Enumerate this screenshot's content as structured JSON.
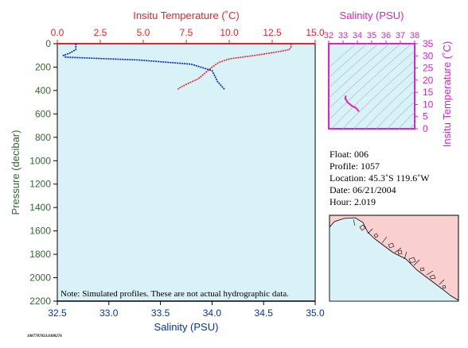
{
  "colors": {
    "plot_bg": "#d8f2f8",
    "temperature": "#e8232a",
    "salinity": "#0022bb",
    "ts": "#e020c8",
    "axis_text": "#336633",
    "map_land": "#f9cfcf",
    "map_water": "#d8f2f8"
  },
  "chart_data": [
    {
      "type": "line",
      "xlabel_top": "Insitu Temperature (˚C)",
      "xlabel_bottom": "Salinity (PSU)",
      "ylabel": "Pressure (decibar)",
      "temperature_ticks": [
        "0.0",
        "2.5",
        "5.0",
        "7.5",
        "10.0",
        "12.5",
        "15.0"
      ],
      "salinity_ticks": [
        "32.5",
        "33.0",
        "33.5",
        "34.0",
        "34.5",
        "35.0"
      ],
      "pressure_ticks": [
        "0",
        "200",
        "400",
        "600",
        "800",
        "1000",
        "1200",
        "1400",
        "1600",
        "1800",
        "2000",
        "2200"
      ],
      "temperature_range": [
        0,
        15
      ],
      "salinity_range": [
        32.5,
        35.0
      ],
      "pressure_range": [
        0,
        2200
      ],
      "note": "Note: Simulated profiles.  These are not actual hydrographic data.",
      "series": [
        {
          "key": "temperature",
          "points": [
            [
              13.6,
              0
            ],
            [
              13.6,
              25
            ],
            [
              13.5,
              50
            ],
            [
              12.8,
              70
            ],
            [
              11.5,
              100
            ],
            [
              10.0,
              130
            ],
            [
              9.4,
              160
            ],
            [
              9.0,
              200
            ],
            [
              8.6,
              250
            ],
            [
              8.2,
              300
            ],
            [
              7.6,
              340
            ],
            [
              7.2,
              370
            ],
            [
              7.0,
              390
            ]
          ]
        },
        {
          "key": "salinity",
          "points": [
            [
              32.68,
              0
            ],
            [
              32.68,
              50
            ],
            [
              32.62,
              80
            ],
            [
              32.56,
              100
            ],
            [
              32.58,
              115
            ],
            [
              33.3,
              140
            ],
            [
              33.8,
              175
            ],
            [
              34.0,
              230
            ],
            [
              34.03,
              280
            ],
            [
              34.05,
              320
            ],
            [
              34.1,
              370
            ],
            [
              34.12,
              390
            ]
          ]
        }
      ]
    },
    {
      "type": "line",
      "xlabel": "Salinity (PSU)",
      "ylabel": "Insitu Temperature (˚C)",
      "x_ticks": [
        "32",
        "33",
        "34",
        "35",
        "36",
        "37",
        "38"
      ],
      "y_ticks": [
        "0",
        "5",
        "10",
        "15",
        "20",
        "25",
        "30",
        "35"
      ],
      "x_range": [
        32,
        38
      ],
      "y_range": [
        0,
        35
      ],
      "series": [
        {
          "key": "ts",
          "points": [
            [
              33.2,
              13.6
            ],
            [
              33.15,
              12.5
            ],
            [
              33.3,
              11.0
            ],
            [
              33.6,
              9.5
            ],
            [
              33.9,
              8.6
            ],
            [
              34.05,
              7.6
            ],
            [
              34.1,
              7.0
            ]
          ]
        }
      ]
    }
  ],
  "info": {
    "float": "Float:  006",
    "profile": "Profile:  1057",
    "location": "Location:  45.3˚S  119.6˚W",
    "date": "Date:  06/21/2004",
    "hour": "Hour:  2.019"
  },
  "footer_code": "1087787833.0388276"
}
